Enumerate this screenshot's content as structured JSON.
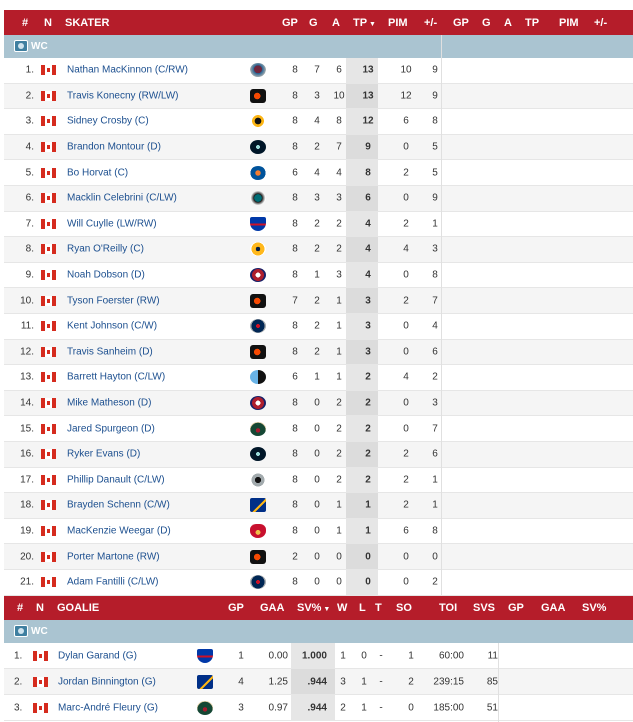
{
  "skaters_header": {
    "num": "#",
    "nat": "N",
    "player": "SKATER",
    "gp": "GP",
    "g": "G",
    "a": "A",
    "tp": "TP",
    "pim": "PIM",
    "pm": "+/-",
    "gp2": "GP",
    "g2": "G",
    "a2": "A",
    "tp2": "TP",
    "pim2": "PIM",
    "pm2": "+/-"
  },
  "group_label": "WC",
  "colors": {
    "header_red": "#b51d2a",
    "group_blue": "#aac4d1",
    "link_blue": "#1c4f8f"
  },
  "skaters": [
    {
      "rank": "1.",
      "name": "Nathan MacKinnon (C/RW)",
      "logo": "avalanche-logo",
      "gp": "8",
      "g": "7",
      "a": "6",
      "tp": "13",
      "pim": "10",
      "pm": "9"
    },
    {
      "rank": "2.",
      "name": "Travis Konecny (RW/LW)",
      "logo": "flyers-logo",
      "gp": "8",
      "g": "3",
      "a": "10",
      "tp": "13",
      "pim": "12",
      "pm": "9"
    },
    {
      "rank": "3.",
      "name": "Sidney Crosby (C)",
      "logo": "penguins-logo",
      "gp": "8",
      "g": "4",
      "a": "8",
      "tp": "12",
      "pim": "6",
      "pm": "8"
    },
    {
      "rank": "4.",
      "name": "Brandon Montour (D)",
      "logo": "kraken-logo",
      "gp": "8",
      "g": "2",
      "a": "7",
      "tp": "9",
      "pim": "0",
      "pm": "5"
    },
    {
      "rank": "5.",
      "name": "Bo Horvat (C)",
      "logo": "islanders-logo",
      "gp": "6",
      "g": "4",
      "a": "4",
      "tp": "8",
      "pim": "2",
      "pm": "5"
    },
    {
      "rank": "6.",
      "name": "Macklin Celebrini (C/LW)",
      "logo": "sharks-logo",
      "gp": "8",
      "g": "3",
      "a": "3",
      "tp": "6",
      "pim": "0",
      "pm": "9"
    },
    {
      "rank": "7.",
      "name": "Will Cuylle (LW/RW)",
      "logo": "rangers-logo",
      "gp": "8",
      "g": "2",
      "a": "2",
      "tp": "4",
      "pim": "2",
      "pm": "1"
    },
    {
      "rank": "8.",
      "name": "Ryan O'Reilly (C)",
      "logo": "predators-logo",
      "gp": "8",
      "g": "2",
      "a": "2",
      "tp": "4",
      "pim": "4",
      "pm": "3"
    },
    {
      "rank": "9.",
      "name": "Noah Dobson (D)",
      "logo": "canadiens-logo",
      "gp": "8",
      "g": "1",
      "a": "3",
      "tp": "4",
      "pim": "0",
      "pm": "8"
    },
    {
      "rank": "10.",
      "name": "Tyson Foerster (RW)",
      "logo": "flyers-logo",
      "gp": "7",
      "g": "2",
      "a": "1",
      "tp": "3",
      "pim": "2",
      "pm": "7"
    },
    {
      "rank": "11.",
      "name": "Kent Johnson (C/W)",
      "logo": "blue-jackets-logo",
      "gp": "8",
      "g": "2",
      "a": "1",
      "tp": "3",
      "pim": "0",
      "pm": "4"
    },
    {
      "rank": "12.",
      "name": "Travis Sanheim (D)",
      "logo": "flyers-logo",
      "gp": "8",
      "g": "2",
      "a": "1",
      "tp": "3",
      "pim": "0",
      "pm": "6"
    },
    {
      "rank": "13.",
      "name": "Barrett Hayton (C/LW)",
      "logo": "utah-logo",
      "gp": "6",
      "g": "1",
      "a": "1",
      "tp": "2",
      "pim": "4",
      "pm": "2"
    },
    {
      "rank": "14.",
      "name": "Mike Matheson (D)",
      "logo": "canadiens-logo",
      "gp": "8",
      "g": "0",
      "a": "2",
      "tp": "2",
      "pim": "0",
      "pm": "3"
    },
    {
      "rank": "15.",
      "name": "Jared Spurgeon (D)",
      "logo": "wild-logo",
      "gp": "8",
      "g": "0",
      "a": "2",
      "tp": "2",
      "pim": "0",
      "pm": "7"
    },
    {
      "rank": "16.",
      "name": "Ryker Evans (D)",
      "logo": "kraken-logo",
      "gp": "8",
      "g": "0",
      "a": "2",
      "tp": "2",
      "pim": "2",
      "pm": "6"
    },
    {
      "rank": "17.",
      "name": "Phillip Danault (C/LW)",
      "logo": "kings-logo",
      "gp": "8",
      "g": "0",
      "a": "2",
      "tp": "2",
      "pim": "2",
      "pm": "1"
    },
    {
      "rank": "18.",
      "name": "Brayden Schenn (C/W)",
      "logo": "blues-logo",
      "gp": "8",
      "g": "0",
      "a": "1",
      "tp": "1",
      "pim": "2",
      "pm": "1"
    },
    {
      "rank": "19.",
      "name": "MacKenzie Weegar (D)",
      "logo": "flames-logo",
      "gp": "8",
      "g": "0",
      "a": "1",
      "tp": "1",
      "pim": "6",
      "pm": "8"
    },
    {
      "rank": "20.",
      "name": "Porter Martone (RW)",
      "logo": "flyers-logo",
      "gp": "2",
      "g": "0",
      "a": "0",
      "tp": "0",
      "pim": "0",
      "pm": "0"
    },
    {
      "rank": "21.",
      "name": "Adam Fantilli (C/LW)",
      "logo": "blue-jackets-logo",
      "gp": "8",
      "g": "0",
      "a": "0",
      "tp": "0",
      "pim": "0",
      "pm": "2"
    }
  ],
  "goalies_header": {
    "num": "#",
    "nat": "N",
    "player": "GOALIE",
    "gp": "GP",
    "gaa": "GAA",
    "svp": "SV%",
    "w": "W",
    "l": "L",
    "t": "T",
    "so": "SO",
    "toi": "TOI",
    "svs": "SVS",
    "gp2": "GP",
    "gaa2": "GAA",
    "svp2": "SV%"
  },
  "goalies": [
    {
      "rank": "1.",
      "name": "Dylan Garand (G)",
      "logo": "rangers-logo",
      "gp": "1",
      "gaa": "0.00",
      "svp": "1.000",
      "w": "1",
      "l": "0",
      "t": "-",
      "so": "1",
      "toi": "60:00",
      "svs": "11"
    },
    {
      "rank": "2.",
      "name": "Jordan Binnington (G)",
      "logo": "blues-logo",
      "gp": "4",
      "gaa": "1.25",
      "svp": ".944",
      "w": "3",
      "l": "1",
      "t": "-",
      "so": "2",
      "toi": "239:15",
      "svs": "85"
    },
    {
      "rank": "3.",
      "name": "Marc-André Fleury (G)",
      "logo": "wild-logo",
      "gp": "3",
      "gaa": "0.97",
      "svp": ".944",
      "w": "2",
      "l": "1",
      "t": "-",
      "so": "0",
      "toi": "185:00",
      "svs": "51"
    }
  ]
}
